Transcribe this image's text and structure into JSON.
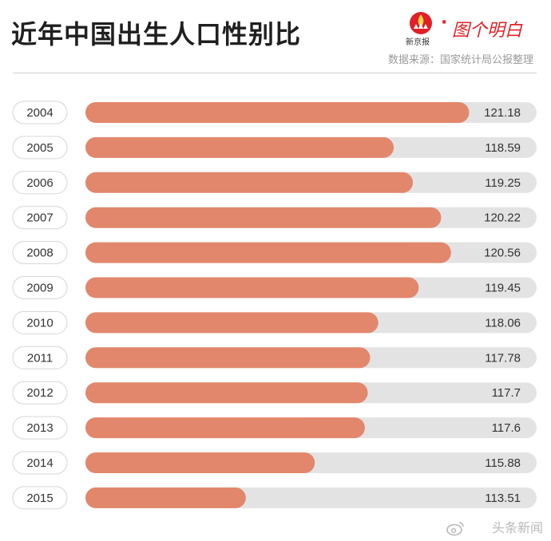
{
  "header": {
    "title": "近年中国出生人口性别比",
    "source": "数据来源：国家统计局公报整理",
    "brand_name": "新京报",
    "brand_slogan": "图个明白"
  },
  "watermark": "头条新闻",
  "colors": {
    "bar_fill": "#e2876c",
    "bar_track": "#e3e3e3",
    "pill_border": "#d6d6d6",
    "brand_red": "#e21f26"
  },
  "chart_data": {
    "type": "bar",
    "orientation": "horizontal",
    "title": "近年中国出生人口性别比",
    "categories": [
      "2004",
      "2005",
      "2006",
      "2007",
      "2008",
      "2009",
      "2010",
      "2011",
      "2012",
      "2013",
      "2014",
      "2015"
    ],
    "values": [
      121.18,
      118.59,
      119.25,
      120.22,
      120.56,
      119.45,
      118.06,
      117.78,
      117.7,
      117.6,
      115.88,
      113.51
    ],
    "value_labels": [
      "121.18",
      "118.59",
      "119.25",
      "120.22",
      "120.56",
      "119.45",
      "118.06",
      "117.78",
      "117.7",
      "117.6",
      "115.88",
      "113.51"
    ],
    "xlim": [
      108,
      123.5
    ],
    "grid": false,
    "legend": "none"
  }
}
